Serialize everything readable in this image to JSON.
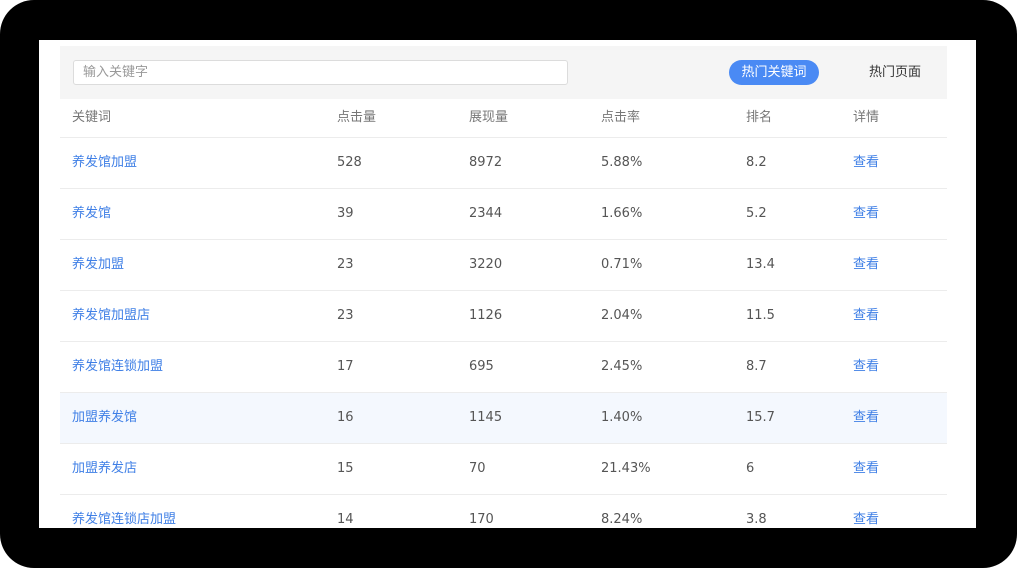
{
  "search": {
    "placeholder": "输入关键字"
  },
  "tabs": [
    "热门关键词",
    "热门页面"
  ],
  "table": {
    "headers": [
      "关键词",
      "点击量",
      "展现量",
      "点击率",
      "排名",
      "详情"
    ],
    "rows": [
      [
        "养发馆加盟",
        "528",
        "8972",
        "5.88%",
        "8.2",
        "查看"
      ],
      [
        "养发馆",
        "39",
        "2344",
        "1.66%",
        "5.2",
        "查看"
      ],
      [
        "养发加盟",
        "23",
        "3220",
        "0.71%",
        "13.4",
        "查看"
      ],
      [
        "养发馆加盟店",
        "23",
        "1126",
        "2.04%",
        "11.5",
        "查看"
      ],
      [
        "养发馆连锁加盟",
        "17",
        "695",
        "2.45%",
        "8.7",
        "查看"
      ],
      [
        "加盟养发馆",
        "16",
        "1145",
        "1.40%",
        "15.7",
        "查看"
      ],
      [
        "加盟养发店",
        "15",
        "70",
        "21.43%",
        "6",
        "查看"
      ],
      [
        "养发馆连锁店加盟",
        "14",
        "170",
        "8.24%",
        "3.8",
        "查看"
      ]
    ]
  }
}
